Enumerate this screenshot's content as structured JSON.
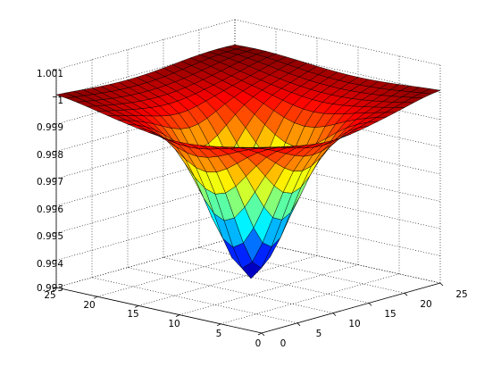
{
  "chart_data": {
    "type": "surface",
    "title": "",
    "xlabel": "",
    "ylabel": "",
    "zlabel": "",
    "x_ticks": [
      "0",
      "5",
      "10",
      "15",
      "20",
      "25"
    ],
    "y_ticks": [
      "0",
      "5",
      "10",
      "15",
      "20",
      "25"
    ],
    "z_ticks": [
      "0.993",
      "0.994",
      "0.995",
      "0.996",
      "0.997",
      "0.998",
      "0.999",
      "1",
      "1.001"
    ],
    "xlim": [
      0,
      25
    ],
    "ylim": [
      0,
      25
    ],
    "zlim": [
      0.993,
      1.001
    ],
    "grid": true,
    "colormap": "jet",
    "surface": {
      "grid_size": 21,
      "base_value": 1.0,
      "min_value": 0.9936,
      "min_at": [
        10,
        10
      ],
      "corner_value": 0.99985,
      "edge_mid_value": 1.0001
    }
  }
}
